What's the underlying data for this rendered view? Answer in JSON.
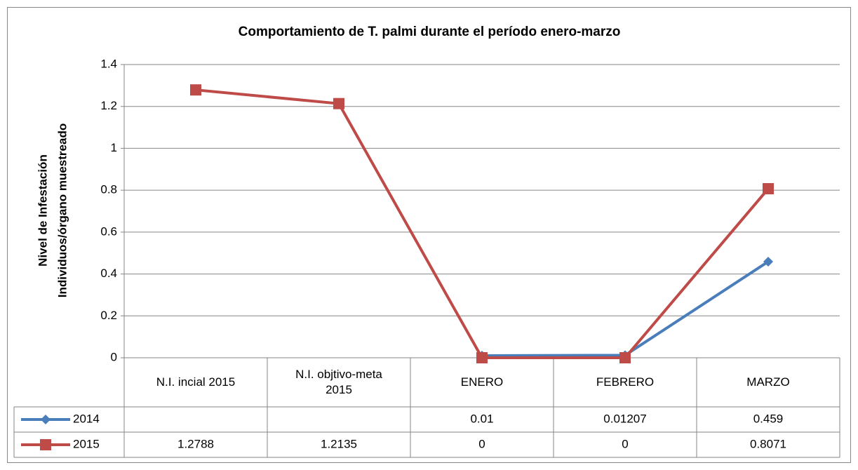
{
  "chart_data": {
    "type": "line",
    "title": "Comportamiento de T. palmi durante el período enero-marzo",
    "y_label": [
      "Nivel de Infestación",
      "Individuos/órgano muestreado"
    ],
    "categories": [
      "N.I. incial 2015",
      "N.I. objtivo-meta 2015",
      "ENERO",
      "FEBRERO",
      "MARZO"
    ],
    "series": [
      {
        "name": "2014",
        "color": "#4a7ebb",
        "marker": "diamond",
        "values": [
          null,
          null,
          0.01,
          0.01207,
          0.459
        ]
      },
      {
        "name": "2015",
        "color": "#be4b48",
        "marker": "square",
        "values": [
          1.2788,
          1.2135,
          0,
          0,
          0.8071
        ]
      }
    ],
    "ylim": [
      0,
      1.4
    ],
    "yticks": [
      0,
      0.2,
      0.4,
      0.6,
      0.8,
      1,
      1.2,
      1.4
    ],
    "grid": true,
    "data_table": true
  }
}
